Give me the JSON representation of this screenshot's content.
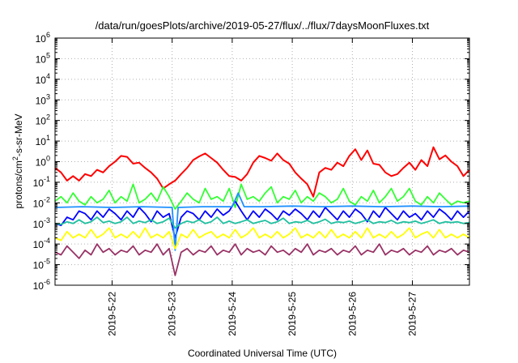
{
  "chart_data": {
    "type": "line",
    "title": "/data/run/goesPlots/archive/2019-05-27/flux/../flux/7daysMoonFluxes.txt",
    "xlabel": "Coordinated Universal Time (UTC)",
    "ylabel": "protons/cm2-s-sr-MeV",
    "ylabel_parts": {
      "pre": "protons/cm",
      "sup": "2",
      "post": "-s-sr-MeV"
    },
    "yscale": "log",
    "x_unit": "day of May 2019 (UTC)",
    "xlim": [
      21.05,
      27.95
    ],
    "ylim": [
      1e-06,
      1000000.0
    ],
    "grid": true,
    "legend": "none",
    "x_ticks": [
      {
        "x": 22,
        "label": "2019-5-22"
      },
      {
        "x": 23,
        "label": "2019-5-23"
      },
      {
        "x": 24,
        "label": "2019-5-24"
      },
      {
        "x": 25,
        "label": "2019-5-25"
      },
      {
        "x": 26,
        "label": "2019-5-26"
      },
      {
        "x": 27,
        "label": "2019-5-27"
      }
    ],
    "y_ticks": [
      {
        "value": 1e-06,
        "base": "10",
        "exp": "-6"
      },
      {
        "value": 1e-05,
        "base": "10",
        "exp": "-5"
      },
      {
        "value": 0.0001,
        "base": "10",
        "exp": "-4"
      },
      {
        "value": 0.001,
        "base": "10",
        "exp": "-3"
      },
      {
        "value": 0.01,
        "base": "10",
        "exp": "-2"
      },
      {
        "value": 0.1,
        "base": "10",
        "exp": "-1"
      },
      {
        "value": 1,
        "base": "10",
        "exp": "0"
      },
      {
        "value": 10,
        "base": "10",
        "exp": "1"
      },
      {
        "value": 100,
        "base": "10",
        "exp": "2"
      },
      {
        "value": 1000,
        "base": "10",
        "exp": "3"
      },
      {
        "value": 10000,
        "base": "10",
        "exp": "4"
      },
      {
        "value": 100000,
        "base": "10",
        "exp": "5"
      },
      {
        "value": 1000000,
        "base": "10",
        "exp": "6"
      }
    ],
    "series": [
      {
        "color": "#ff0000",
        "x": [
          21.05,
          21.15,
          21.25,
          21.35,
          21.45,
          21.55,
          21.65,
          21.75,
          21.85,
          21.95,
          22.05,
          22.15,
          22.25,
          22.35,
          22.45,
          22.55,
          22.65,
          22.75,
          22.85,
          22.95,
          23.05,
          23.15,
          23.25,
          23.35,
          23.45,
          23.55,
          23.65,
          23.75,
          23.85,
          23.95,
          24.05,
          24.15,
          24.25,
          24.35,
          24.45,
          24.55,
          24.65,
          24.75,
          24.85,
          24.95,
          25.05,
          25.15,
          25.25,
          25.35,
          25.45,
          25.55,
          25.65,
          25.75,
          25.85,
          25.95,
          26.05,
          26.15,
          26.25,
          26.35,
          26.45,
          26.55,
          26.65,
          26.75,
          26.85,
          26.95,
          27.05,
          27.15,
          27.25,
          27.35,
          27.45,
          27.55,
          27.65,
          27.75,
          27.85,
          27.95
        ],
        "y": [
          0.5,
          0.3,
          0.12,
          0.2,
          0.12,
          0.25,
          0.2,
          0.4,
          0.3,
          0.6,
          1.0,
          1.9,
          1.7,
          0.8,
          0.9,
          0.5,
          0.3,
          0.15,
          0.05,
          0.08,
          0.12,
          0.25,
          0.5,
          1.2,
          1.8,
          2.5,
          1.5,
          0.9,
          0.4,
          0.2,
          0.18,
          0.12,
          0.25,
          0.9,
          1.9,
          1.5,
          1.1,
          2.5,
          1.2,
          0.8,
          0.3,
          0.15,
          0.08,
          0.02,
          0.3,
          0.5,
          0.4,
          0.9,
          0.6,
          1.9,
          4.0,
          1.2,
          3.5,
          0.8,
          0.7,
          0.3,
          0.2,
          0.25,
          0.5,
          0.9,
          0.4,
          1.2,
          0.6,
          5.0,
          1.3,
          2.0,
          1.0,
          0.6,
          0.2,
          0.4
        ],
        "x_detail": [
          22.55,
          22.6,
          22.7,
          22.8,
          22.9,
          23.0,
          23.1,
          23.2,
          23.3,
          23.35,
          23.45,
          23.55,
          23.6,
          23.7,
          23.8,
          23.9,
          24.0,
          24.05,
          24.1,
          24.2,
          24.3,
          24.4,
          24.5,
          24.6,
          24.7,
          24.8,
          24.9,
          25.0,
          25.1,
          25.2,
          25.3,
          25.4,
          25.5,
          25.6,
          25.7,
          25.8,
          25.9,
          26.0,
          26.1,
          26.2,
          26.3,
          26.4,
          26.5,
          26.6,
          26.7,
          26.8,
          26.9,
          27.0,
          27.1,
          27.2,
          27.3,
          27.4,
          27.5,
          27.6,
          27.7,
          27.8,
          27.95
        ]
      },
      {
        "color": "#33ff33",
        "x": [
          21.05,
          21.15,
          21.25,
          21.35,
          21.45,
          21.55,
          21.65,
          21.75,
          21.85,
          21.95,
          22.05,
          22.15,
          22.25,
          22.35,
          22.45,
          22.55,
          22.65,
          22.75,
          22.85,
          22.95,
          23.05,
          23.15,
          23.25,
          23.35,
          23.45,
          23.55,
          23.65,
          23.75,
          23.85,
          23.95,
          24.05,
          24.15,
          24.25,
          24.35,
          24.45,
          24.55,
          24.65,
          24.75,
          24.85,
          24.95,
          25.05,
          25.15,
          25.25,
          25.35,
          25.45,
          25.55,
          25.65,
          25.75,
          25.85,
          25.95,
          26.05,
          26.15,
          26.25,
          26.35,
          26.45,
          26.55,
          26.65,
          26.75,
          26.85,
          26.95,
          27.05,
          27.15,
          27.25,
          27.35,
          27.45,
          27.55,
          27.65,
          27.75,
          27.85,
          27.95
        ],
        "y": [
          0.012,
          0.02,
          0.01,
          0.03,
          0.012,
          0.008,
          0.02,
          0.01,
          0.015,
          0.04,
          0.01,
          0.02,
          0.012,
          0.08,
          0.01,
          0.015,
          0.03,
          0.012,
          0.06,
          0.02,
          0.005,
          0.012,
          0.03,
          0.015,
          0.01,
          0.05,
          0.015,
          0.02,
          0.012,
          0.05,
          0.006,
          0.08,
          0.015,
          0.02,
          0.012,
          0.03,
          0.06,
          0.01,
          0.02,
          0.015,
          0.04,
          0.01,
          0.02,
          0.012,
          0.03,
          0.02,
          0.01,
          0.015,
          0.05,
          0.012,
          0.008,
          0.02,
          0.012,
          0.04,
          0.01,
          0.02,
          0.05,
          0.012,
          0.02,
          0.05,
          0.012,
          0.008,
          0.02,
          0.01,
          0.03,
          0.015,
          0.008,
          0.012,
          0.01,
          0.012
        ]
      },
      {
        "color": "#0000ff",
        "x": [
          21.05,
          21.15,
          21.25,
          21.35,
          21.45,
          21.55,
          21.65,
          21.75,
          21.85,
          21.95,
          22.05,
          22.15,
          22.25,
          22.35,
          22.45,
          22.55,
          22.65,
          22.75,
          22.85,
          22.95,
          23.05,
          23.15,
          23.25,
          23.35,
          23.45,
          23.55,
          23.65,
          23.75,
          23.85,
          23.95,
          24.05,
          24.15,
          24.25,
          24.35,
          24.45,
          24.55,
          24.65,
          24.75,
          24.85,
          24.95,
          25.05,
          25.15,
          25.25,
          25.35,
          25.45,
          25.55,
          25.65,
          25.75,
          25.85,
          25.95,
          26.05,
          26.15,
          26.25,
          26.35,
          26.45,
          26.55,
          26.65,
          26.75,
          26.85,
          26.95,
          27.05,
          27.15,
          27.25,
          27.35,
          27.45,
          27.55,
          27.65,
          27.75,
          27.85,
          27.95
        ],
        "y": [
          0.001,
          0.0008,
          0.002,
          0.0015,
          0.004,
          0.003,
          0.0015,
          0.004,
          0.002,
          0.005,
          0.003,
          0.0015,
          0.004,
          0.002,
          0.006,
          0.003,
          0.0012,
          0.004,
          0.002,
          0.003,
          0.0002,
          0.002,
          0.004,
          0.003,
          0.0015,
          0.004,
          0.002,
          0.005,
          0.0025,
          0.004,
          0.012,
          0.004,
          0.0015,
          0.004,
          0.002,
          0.005,
          0.003,
          0.0015,
          0.004,
          0.0025,
          0.005,
          0.003,
          0.0015,
          0.004,
          0.002,
          0.006,
          0.003,
          0.0015,
          0.004,
          0.002,
          0.005,
          0.003,
          0.0012,
          0.004,
          0.002,
          0.006,
          0.003,
          0.0015,
          0.004,
          0.002,
          0.003,
          0.0015,
          0.004,
          0.002,
          0.005,
          0.003,
          0.0015,
          0.004,
          0.002,
          0.004
        ]
      },
      {
        "color": "#1e90ff",
        "x": [
          21.05,
          21.5,
          22.0,
          22.5,
          23.0,
          23.05,
          23.1,
          23.5,
          24.0,
          24.1,
          24.2,
          24.5,
          25.0,
          25.5,
          26.0,
          26.5,
          27.0,
          27.5,
          27.95
        ],
        "y": [
          0.006,
          0.0065,
          0.006,
          0.0065,
          0.006,
          5e-05,
          0.006,
          0.0065,
          0.0065,
          0.03,
          0.0065,
          0.0065,
          0.007,
          0.0065,
          0.007,
          0.0065,
          0.007,
          0.0065,
          0.007
        ]
      },
      {
        "color": "#20c0a0",
        "x": [
          21.05,
          21.15,
          21.25,
          21.35,
          21.45,
          21.55,
          21.65,
          21.75,
          21.85,
          21.95,
          22.05,
          22.15,
          22.25,
          22.35,
          22.45,
          22.55,
          22.65,
          22.75,
          22.85,
          22.95,
          23.05,
          23.15,
          23.25,
          23.35,
          23.45,
          23.55,
          23.65,
          23.75,
          23.85,
          23.95,
          24.05,
          24.15,
          24.25,
          24.35,
          24.45,
          24.55,
          24.65,
          24.75,
          24.85,
          24.95,
          25.05,
          25.15,
          25.25,
          25.35,
          25.45,
          25.55,
          25.65,
          25.75,
          25.85,
          25.95,
          26.05,
          26.15,
          26.25,
          26.35,
          26.45,
          26.55,
          26.65,
          26.75,
          26.85,
          26.95,
          27.05,
          27.15,
          27.25,
          27.35,
          27.45,
          27.55,
          27.65,
          27.75,
          27.85,
          27.95
        ],
        "y": [
          0.001,
          0.0009,
          0.0012,
          0.001,
          0.0015,
          0.001,
          0.0012,
          0.002,
          0.0011,
          0.0013,
          0.001,
          0.0012,
          0.002,
          0.001,
          0.0013,
          0.0011,
          0.0015,
          0.001,
          0.0012,
          0.0018,
          0.0006,
          0.001,
          0.0013,
          0.0011,
          0.0015,
          0.001,
          0.0012,
          0.002,
          0.001,
          0.0013,
          0.001,
          0.0012,
          0.0015,
          0.001,
          0.0012,
          0.0014,
          0.001,
          0.0012,
          0.0018,
          0.001,
          0.0012,
          0.0011,
          0.0014,
          0.001,
          0.0012,
          0.0016,
          0.001,
          0.0012,
          0.0011,
          0.0013,
          0.001,
          0.0012,
          0.0015,
          0.001,
          0.0012,
          0.0011,
          0.0014,
          0.001,
          0.0012,
          0.0011,
          0.0013,
          0.001,
          0.0012,
          0.0015,
          0.001,
          0.0012,
          0.0011,
          0.0012,
          0.001,
          0.0011
        ]
      },
      {
        "color": "#ffff00",
        "x": [
          21.05,
          21.15,
          21.25,
          21.35,
          21.45,
          21.55,
          21.65,
          21.75,
          21.85,
          21.95,
          22.05,
          22.15,
          22.25,
          22.35,
          22.45,
          22.55,
          22.65,
          22.75,
          22.85,
          22.95,
          23.05,
          23.15,
          23.25,
          23.35,
          23.45,
          23.55,
          23.65,
          23.75,
          23.85,
          23.95,
          24.05,
          24.15,
          24.25,
          24.35,
          24.45,
          24.55,
          24.65,
          24.75,
          24.85,
          24.95,
          25.05,
          25.15,
          25.25,
          25.35,
          25.45,
          25.55,
          25.65,
          25.75,
          25.85,
          25.95,
          26.05,
          26.15,
          26.25,
          26.35,
          26.45,
          26.55,
          26.65,
          26.75,
          26.85,
          26.95,
          27.05,
          27.15,
          27.25,
          27.35,
          27.45,
          27.55,
          27.65,
          27.75,
          27.85,
          27.95
        ],
        "y": [
          0.0002,
          0.00015,
          0.0004,
          0.0002,
          0.0003,
          0.0002,
          0.0005,
          0.0002,
          0.0003,
          0.0006,
          0.0002,
          0.0003,
          0.0002,
          0.0004,
          0.0002,
          0.0006,
          0.0002,
          0.0003,
          0.0002,
          0.0004,
          6e-05,
          0.0003,
          0.0002,
          0.0005,
          0.0002,
          0.0003,
          0.0004,
          0.0002,
          0.0003,
          0.0002,
          0.0005,
          0.0002,
          0.0003,
          0.0006,
          0.0002,
          0.0003,
          0.0002,
          0.0004,
          0.0002,
          0.0003,
          0.0006,
          0.0002,
          0.0003,
          0.0002,
          0.0004,
          0.0002,
          0.0005,
          0.0002,
          0.0003,
          0.0002,
          0.0004,
          0.0002,
          0.0006,
          0.0002,
          0.0003,
          0.0002,
          0.0004,
          0.0002,
          0.0003,
          0.0006,
          0.0002,
          0.0003,
          0.0004,
          0.0002,
          0.0005,
          0.0002,
          0.0003,
          0.0002,
          0.0003,
          0.0002
        ]
      },
      {
        "color": "#993366",
        "x": [
          21.05,
          21.15,
          21.25,
          21.35,
          21.45,
          21.55,
          21.65,
          21.75,
          21.85,
          21.95,
          22.05,
          22.15,
          22.25,
          22.35,
          22.45,
          22.55,
          22.65,
          22.75,
          22.85,
          22.95,
          23.05,
          23.15,
          23.25,
          23.35,
          23.45,
          23.55,
          23.65,
          23.75,
          23.85,
          23.95,
          24.05,
          24.15,
          24.25,
          24.35,
          24.45,
          24.55,
          24.65,
          24.75,
          24.85,
          24.95,
          25.05,
          25.15,
          25.25,
          25.35,
          25.45,
          25.55,
          25.65,
          25.75,
          25.85,
          25.95,
          26.05,
          26.15,
          26.25,
          26.35,
          26.45,
          26.55,
          26.65,
          26.75,
          26.85,
          26.95,
          27.05,
          27.15,
          27.25,
          27.35,
          27.45,
          27.55,
          27.65,
          27.75,
          27.85,
          27.95
        ],
        "y": [
          4e-05,
          3e-05,
          8e-05,
          4e-05,
          2e-05,
          5e-05,
          3e-05,
          0.0001,
          4e-05,
          6e-05,
          3e-05,
          5e-05,
          4e-05,
          8e-05,
          3e-05,
          5e-05,
          4e-05,
          0.0001,
          3e-05,
          6e-05,
          3e-06,
          4e-05,
          6e-05,
          3e-05,
          5e-05,
          4e-05,
          8e-05,
          3e-05,
          5e-05,
          4e-05,
          0.0001,
          3e-05,
          6e-05,
          4e-05,
          5e-05,
          3e-05,
          8e-05,
          4e-05,
          5e-05,
          3e-05,
          6e-05,
          4e-05,
          0.0001,
          3e-05,
          5e-05,
          4e-05,
          6e-05,
          3e-05,
          5e-05,
          4e-05,
          8e-05,
          3e-05,
          5e-05,
          4e-05,
          0.0001,
          3e-05,
          5e-05,
          4e-05,
          6e-05,
          3e-05,
          5e-05,
          4e-05,
          8e-05,
          3e-05,
          5e-05,
          4e-05,
          6e-05,
          3e-05,
          5e-05,
          4e-05
        ]
      }
    ]
  }
}
